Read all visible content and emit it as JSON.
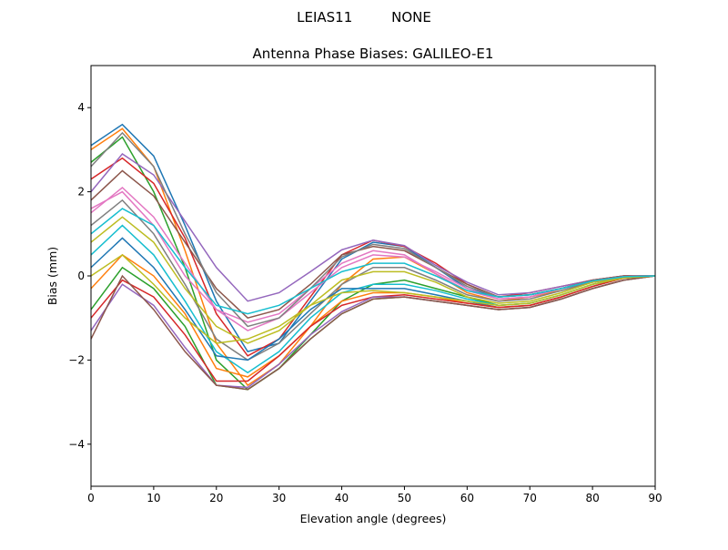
{
  "chart_data": {
    "type": "line",
    "suptitle": "LEIAS11         NONE",
    "title": "Antenna Phase Biases: GALILEO-E1",
    "xlabel": "Elevation angle (degrees)",
    "ylabel": "Bias (mm)",
    "xlim": [
      0,
      90
    ],
    "ylim": [
      -5,
      5
    ],
    "xticks": [
      "0",
      "10",
      "20",
      "30",
      "40",
      "50",
      "60",
      "70",
      "80",
      "90"
    ],
    "yticks": [
      "−4",
      "−2",
      "0",
      "2",
      "4"
    ],
    "ytick_values": [
      -4,
      -2,
      0,
      2,
      4
    ],
    "xtick_values": [
      0,
      10,
      20,
      30,
      40,
      50,
      60,
      70,
      80,
      90
    ],
    "grid": false,
    "colors": [
      "#1f77b4",
      "#ff7f0e",
      "#2ca02c",
      "#d62728",
      "#9467bd",
      "#8c564b",
      "#e377c2",
      "#7f7f7f",
      "#bcbd22",
      "#17becf"
    ],
    "x": [
      0,
      5,
      10,
      15,
      20,
      25,
      30,
      35,
      40,
      45,
      50,
      55,
      60,
      65,
      70,
      75,
      80,
      85,
      90
    ],
    "series": [
      {
        "values": [
          3.1,
          3.6,
          2.85,
          1.2,
          -0.6,
          -1.8,
          -1.6,
          -0.6,
          0.4,
          0.8,
          0.7,
          0.2,
          -0.3,
          -0.5,
          -0.45,
          -0.3,
          -0.15,
          -0.05,
          0
        ]
      },
      {
        "values": [
          3.0,
          3.5,
          2.6,
          0.6,
          -1.6,
          -2.6,
          -2.1,
          -1.2,
          -0.2,
          0.4,
          0.45,
          0.05,
          -0.4,
          -0.6,
          -0.5,
          -0.35,
          -0.15,
          -0.05,
          0
        ]
      },
      {
        "values": [
          2.7,
          3.3,
          2.0,
          0.2,
          -2.0,
          -2.7,
          -2.2,
          -1.4,
          -0.6,
          -0.2,
          -0.1,
          -0.3,
          -0.5,
          -0.7,
          -0.65,
          -0.45,
          -0.2,
          -0.05,
          0
        ]
      },
      {
        "values": [
          2.3,
          2.8,
          2.2,
          0.9,
          -0.9,
          -1.9,
          -1.5,
          -0.5,
          0.5,
          0.85,
          0.7,
          0.3,
          -0.2,
          -0.5,
          -0.4,
          -0.25,
          -0.1,
          0,
          0
        ]
      },
      {
        "values": [
          2.0,
          2.9,
          2.4,
          1.3,
          0.2,
          -0.6,
          -0.4,
          0.1,
          0.62,
          0.85,
          0.72,
          0.25,
          -0.15,
          -0.45,
          -0.4,
          -0.25,
          -0.1,
          0,
          0
        ]
      },
      {
        "values": [
          1.8,
          2.5,
          1.9,
          0.8,
          -0.3,
          -1.0,
          -0.8,
          -0.2,
          0.5,
          0.7,
          0.6,
          0.2,
          -0.2,
          -0.5,
          -0.45,
          -0.3,
          -0.1,
          0,
          0
        ]
      },
      {
        "values": [
          1.5,
          2.1,
          1.4,
          0.3,
          -0.8,
          -1.3,
          -1.0,
          -0.4,
          0.2,
          0.5,
          0.45,
          0.1,
          -0.3,
          -0.55,
          -0.5,
          -0.3,
          -0.12,
          -0.02,
          0
        ]
      },
      {
        "values": [
          1.2,
          1.8,
          1.0,
          -0.2,
          -1.5,
          -2.0,
          -1.6,
          -0.9,
          -0.2,
          0.2,
          0.2,
          -0.1,
          -0.45,
          -0.6,
          -0.55,
          -0.35,
          -0.15,
          -0.03,
          0
        ]
      },
      {
        "values": [
          0.8,
          1.4,
          0.8,
          -0.3,
          -1.2,
          -1.6,
          -1.3,
          -0.7,
          -0.1,
          0.1,
          0.1,
          -0.15,
          -0.5,
          -0.65,
          -0.6,
          -0.4,
          -0.15,
          -0.03,
          0
        ]
      },
      {
        "values": [
          0.5,
          1.2,
          0.5,
          -0.6,
          -1.8,
          -2.3,
          -1.8,
          -1.0,
          -0.4,
          -0.2,
          -0.2,
          -0.35,
          -0.55,
          -0.7,
          -0.65,
          -0.45,
          -0.2,
          -0.05,
          0
        ]
      },
      {
        "values": [
          0.2,
          0.9,
          0.2,
          -0.8,
          -1.9,
          -2.0,
          -1.5,
          -0.8,
          -0.3,
          -0.3,
          -0.3,
          -0.45,
          -0.6,
          -0.75,
          -0.7,
          -0.5,
          -0.25,
          -0.05,
          0
        ]
      },
      {
        "values": [
          -0.3,
          0.5,
          0.0,
          -0.9,
          -2.2,
          -2.4,
          -1.9,
          -1.2,
          -0.6,
          -0.4,
          -0.4,
          -0.5,
          -0.65,
          -0.75,
          -0.7,
          -0.5,
          -0.25,
          -0.05,
          0
        ]
      },
      {
        "values": [
          -0.8,
          0.2,
          -0.3,
          -1.2,
          -2.6,
          -2.7,
          -2.2,
          -1.5,
          -0.9,
          -0.55,
          -0.5,
          -0.6,
          -0.7,
          -0.8,
          -0.75,
          -0.55,
          -0.3,
          -0.1,
          0
        ]
      },
      {
        "values": [
          -1.0,
          -0.1,
          -0.5,
          -1.4,
          -2.5,
          -2.5,
          -1.9,
          -1.2,
          -0.7,
          -0.5,
          -0.45,
          -0.55,
          -0.65,
          -0.75,
          -0.7,
          -0.5,
          -0.25,
          -0.05,
          0
        ]
      },
      {
        "values": [
          -1.3,
          -0.2,
          -0.7,
          -1.7,
          -2.6,
          -2.65,
          -2.1,
          -1.4,
          -0.85,
          -0.5,
          -0.5,
          -0.6,
          -0.7,
          -0.8,
          -0.75,
          -0.55,
          -0.3,
          -0.1,
          0
        ]
      },
      {
        "values": [
          -1.5,
          0.0,
          -0.8,
          -1.8,
          -2.6,
          -2.7,
          -2.2,
          -1.5,
          -0.9,
          -0.55,
          -0.5,
          -0.6,
          -0.7,
          -0.8,
          -0.75,
          -0.55,
          -0.3,
          -0.1,
          0
        ]
      },
      {
        "values": [
          1.6,
          2.0,
          1.2,
          0.0,
          -0.8,
          -1.1,
          -0.9,
          -0.3,
          0.3,
          0.6,
          0.5,
          0.05,
          -0.35,
          -0.55,
          -0.5,
          -0.3,
          -0.12,
          -0.02,
          0
        ]
      },
      {
        "values": [
          2.6,
          3.4,
          2.6,
          1.0,
          -0.4,
          -1.2,
          -1.0,
          -0.3,
          0.45,
          0.75,
          0.65,
          0.2,
          -0.25,
          -0.5,
          -0.45,
          -0.3,
          -0.12,
          -0.02,
          0
        ]
      },
      {
        "values": [
          0.0,
          0.5,
          -0.2,
          -1.0,
          -1.6,
          -1.5,
          -1.2,
          -0.7,
          -0.4,
          -0.35,
          -0.4,
          -0.5,
          -0.6,
          -0.7,
          -0.65,
          -0.45,
          -0.2,
          -0.05,
          0
        ]
      },
      {
        "values": [
          1.0,
          1.6,
          1.2,
          0.2,
          -0.7,
          -0.9,
          -0.7,
          -0.3,
          0.1,
          0.3,
          0.3,
          0.0,
          -0.35,
          -0.5,
          -0.45,
          -0.3,
          -0.12,
          -0.02,
          0
        ]
      }
    ]
  }
}
